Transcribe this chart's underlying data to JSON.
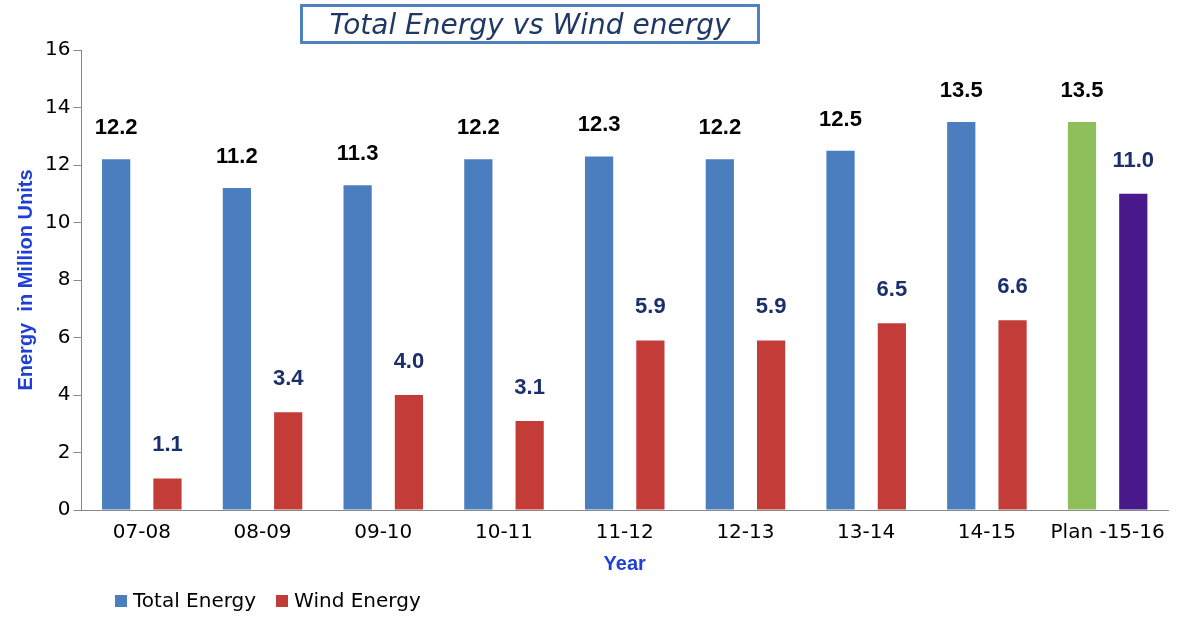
{
  "chart_data": {
    "type": "bar",
    "title": "Total Energy vs Wind energy",
    "xlabel": "Year",
    "ylabel": "Energy  in Million Units",
    "categories": [
      "07-08",
      "08-09",
      "09-10",
      "10-11",
      "11-12",
      "12-13",
      "13-14",
      "14-15",
      "Plan -15-16"
    ],
    "series": [
      {
        "name": "Total Energy",
        "color": "#4a7ebf",
        "colors": [
          "#4a7ebf",
          "#4a7ebf",
          "#4a7ebf",
          "#4a7ebf",
          "#4a7ebf",
          "#4a7ebf",
          "#4a7ebf",
          "#4a7ebf",
          "#8fbf5a"
        ],
        "values": [
          12.2,
          11.2,
          11.3,
          12.2,
          12.3,
          12.2,
          12.5,
          13.5,
          13.5
        ],
        "value_labels": [
          "12.2",
          "11.2",
          "11.3",
          "12.2",
          "12.3",
          "12.2",
          "12.5",
          "13.5",
          "13.5"
        ]
      },
      {
        "name": "Wind Energy",
        "color": "#c43c38",
        "colors": [
          "#c43c38",
          "#c43c38",
          "#c43c38",
          "#c43c38",
          "#c43c38",
          "#c43c38",
          "#c43c38",
          "#c43c38",
          "#4a1a8c"
        ],
        "values": [
          1.1,
          3.4,
          4.0,
          3.1,
          5.9,
          5.9,
          6.5,
          6.6,
          11.0
        ],
        "value_labels": [
          "1.1",
          "3.4",
          "4.0",
          "3.1",
          "5.9",
          "5.9",
          "6.5",
          "6.6",
          "11.0"
        ]
      }
    ],
    "ylim": [
      0,
      16
    ],
    "yticks": [
      0,
      2,
      4,
      6,
      8,
      10,
      12,
      14,
      16
    ],
    "grid": false,
    "legend": "bottom left"
  }
}
